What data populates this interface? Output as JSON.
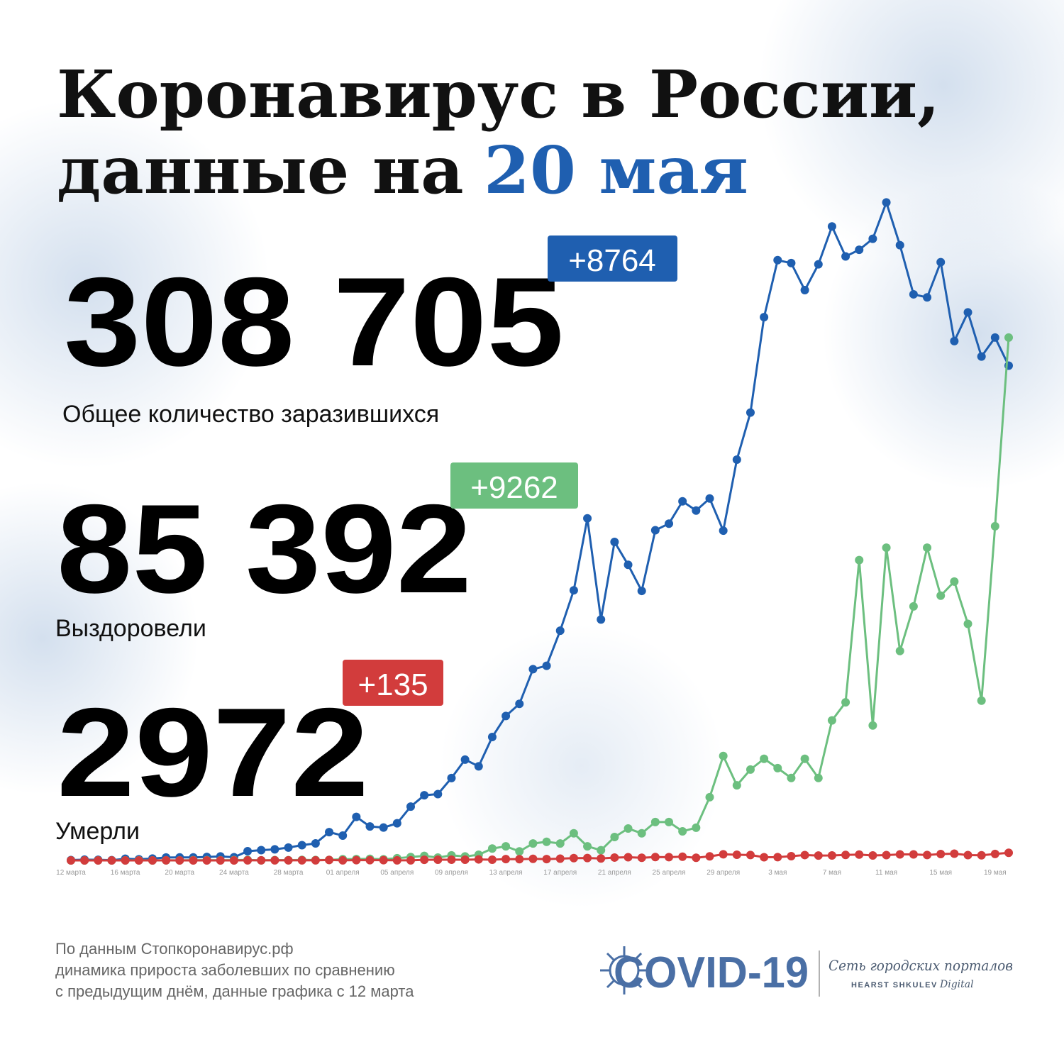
{
  "header": {
    "line1": "Коронавирус в России,",
    "line2": "данные на",
    "highlight": "20 мая"
  },
  "stats": [
    {
      "value": "308 705",
      "delta": "+8764",
      "label": "Общее количество заразившихся"
    },
    {
      "value": "85 392",
      "delta": "+9262",
      "label": "Выздоровели"
    },
    {
      "value": "2972",
      "delta": "+135",
      "label": "Умерли"
    }
  ],
  "chart_data": {
    "type": "line",
    "categories": [
      "12 марта",
      null,
      null,
      null,
      "16 марта",
      null,
      null,
      null,
      "20 марта",
      null,
      null,
      null,
      "24 марта",
      null,
      null,
      null,
      "28 марта",
      null,
      null,
      null,
      "01 апреля",
      null,
      null,
      null,
      "05 апреля",
      null,
      null,
      null,
      "09 апреля",
      null,
      null,
      null,
      "13 апреля",
      null,
      null,
      null,
      "17 апреля",
      null,
      null,
      null,
      "21 апреля",
      null,
      null,
      null,
      "25 апреля",
      null,
      null,
      null,
      "29 апреля",
      null,
      null,
      null,
      "3 мая",
      null,
      null,
      null,
      "7 мая",
      null,
      null,
      null,
      "11 мая",
      null,
      null,
      null,
      "15 мая",
      null,
      null,
      null,
      "19 мая",
      null
    ],
    "ylim": [
      0,
      12000
    ],
    "series": [
      {
        "color": "#1f5fb0",
        "values": [
          6,
          14,
          11,
          4,
          30,
          21,
          33,
          52,
          54,
          53,
          61,
          71,
          57,
          163,
          182,
          196,
          228,
          270,
          302,
          501,
          440,
          771,
          601,
          582,
          658,
          954,
          1154,
          1175,
          1459,
          1786,
          1667,
          2186,
          2558,
          2774,
          3388,
          3448,
          4070,
          4785,
          6060,
          4268,
          5642,
          5236,
          4774,
          5849,
          5966,
          6361,
          6198,
          6411,
          5841,
          7099,
          7933,
          9623,
          10633,
          10581,
          10102,
          10559,
          11231,
          10699,
          10817,
          11012,
          11656,
          10899,
          10028,
          9974,
          10598,
          9200,
          9709,
          8926,
          9263,
          8764
        ]
      },
      {
        "color": "#6cbf7f",
        "values": [
          0,
          0,
          2,
          0,
          1,
          3,
          0,
          2,
          1,
          5,
          4,
          3,
          6,
          9,
          2,
          6,
          5,
          10,
          8,
          9,
          22,
          24,
          28,
          21,
          40,
          60,
          80,
          50,
          90,
          70,
          100,
          210,
          250,
          160,
          300,
          330,
          300,
          480,
          250,
          180,
          415,
          565,
          480,
          680,
          680,
          515,
          580,
          1120,
          1850,
          1330,
          1610,
          1800,
          1635,
          1460,
          1800,
          1460,
          2480,
          2800,
          5320,
          2390,
          5540,
          3710,
          4500,
          5540,
          4690,
          4940,
          4190,
          2830,
          5920,
          9262
        ]
      },
      {
        "color": "#d23c3c",
        "values": [
          0,
          0,
          0,
          0,
          0,
          0,
          0,
          1,
          0,
          0,
          0,
          0,
          0,
          1,
          1,
          1,
          1,
          1,
          2,
          8,
          2,
          5,
          4,
          4,
          2,
          2,
          11,
          13,
          13,
          12,
          18,
          12,
          24,
          22,
          28,
          24,
          31,
          41,
          42,
          34,
          51,
          57,
          47,
          60,
          58,
          66,
          47,
          72,
          108,
          101,
          96,
          57,
          58,
          76,
          95,
          86,
          88,
          98,
          104,
          88,
          94,
          107,
          107,
          96,
          113,
          119,
          94,
          91,
          115,
          135
        ]
      }
    ]
  },
  "footer": [
    "По данным Стопкоронавирус.рф",
    "динамика прироста заболевших по сравнению",
    "с предыдущим днём, данные графика с 12 марта"
  ],
  "logo": {
    "title": "COVID-19",
    "tagline": "Сеть городских порталов",
    "brand": "HEARST SHKULEV",
    "suffix": "Digital"
  }
}
